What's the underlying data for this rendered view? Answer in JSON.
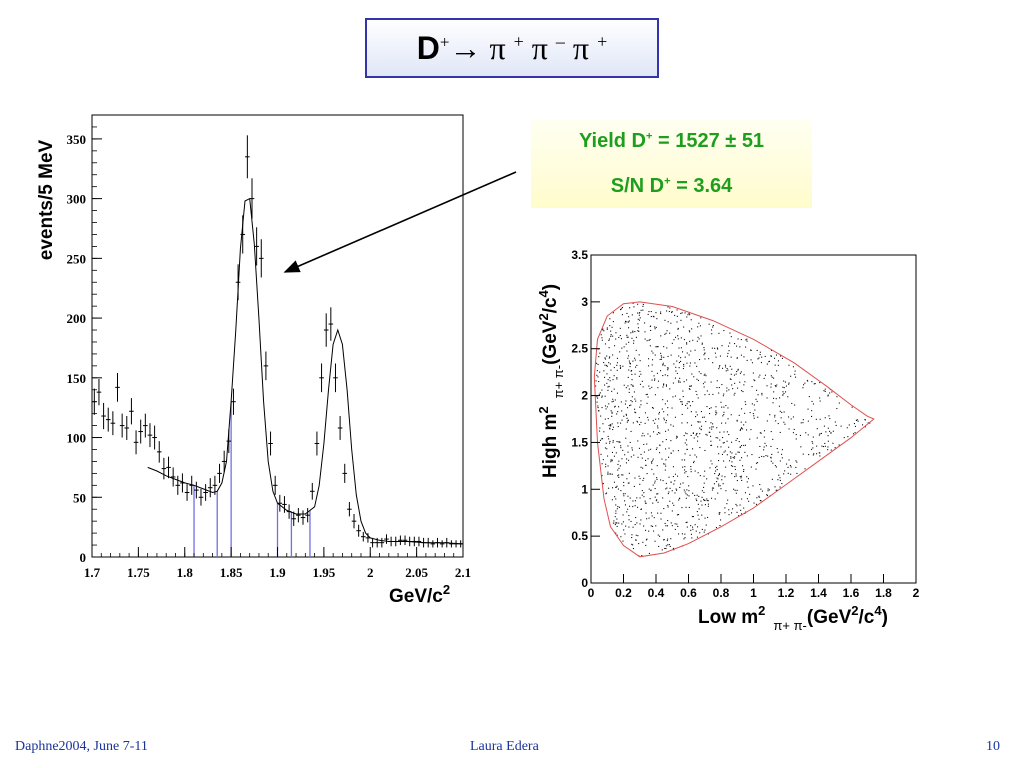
{
  "title": {
    "text": "D+→ π + π – π +",
    "parts": {
      "d": "D",
      "d_charge": "+",
      "arrow": "→",
      "pi": "π",
      "plus": "+",
      "minus": "–"
    }
  },
  "yield_box": {
    "yield_prefix": "Yield D",
    "charge": "+",
    "yield_value": " = 1527 ± 51",
    "sn_prefix": "S/N D",
    "sn_value": " = 3.64"
  },
  "footer": {
    "left": "Daphne2004, June 7-11",
    "center": "Laura Edera",
    "right": "10"
  },
  "colors": {
    "yield_text": "#1e9e1e",
    "title_border": "#3333aa",
    "footer_text": "#1a3399",
    "fit_window": "#6f6fe8",
    "dalitz_boundary": "#e05050"
  },
  "chart_data": [
    {
      "type": "scatter",
      "subtype": "histogram with error bars and fit",
      "xlabel": "GeV/c2",
      "ylabel": "events/5 MeV",
      "xlim": [
        1.7,
        2.1
      ],
      "ylim": [
        0,
        370
      ],
      "xticks": [
        "1.7",
        "1.75",
        "1.8",
        "1.85",
        "1.9",
        "1.95",
        "2",
        "2.05",
        "2.1"
      ],
      "yticks": [
        "0",
        "50",
        "100",
        "150",
        "200",
        "250",
        "300",
        "350"
      ],
      "grid": false,
      "x": [
        1.7025,
        1.7075,
        1.7125,
        1.7175,
        1.7225,
        1.7275,
        1.7325,
        1.7375,
        1.7425,
        1.7475,
        1.7525,
        1.7575,
        1.7625,
        1.7675,
        1.7725,
        1.7775,
        1.7825,
        1.7875,
        1.7925,
        1.7975,
        1.8025,
        1.8075,
        1.8125,
        1.8175,
        1.8225,
        1.8275,
        1.8325,
        1.8375,
        1.8425,
        1.8475,
        1.8525,
        1.8575,
        1.8625,
        1.8675,
        1.8725,
        1.8775,
        1.8825,
        1.8875,
        1.8925,
        1.8975,
        1.9025,
        1.9075,
        1.9125,
        1.9175,
        1.9225,
        1.9275,
        1.9325,
        1.9375,
        1.9425,
        1.9475,
        1.9525,
        1.9575,
        1.9625,
        1.9675,
        1.9725,
        1.9775,
        1.9825,
        1.9875,
        1.9925,
        1.9975,
        2.0025,
        2.0075,
        2.0125,
        2.0175,
        2.0225,
        2.0275,
        2.0325,
        2.0375,
        2.0425,
        2.0475,
        2.0525,
        2.0575,
        2.0625,
        2.0675,
        2.0725,
        2.0775,
        2.0825,
        2.0875,
        2.0925,
        2.0975
      ],
      "y": [
        130,
        138,
        118,
        115,
        112,
        142,
        110,
        108,
        122,
        96,
        105,
        110,
        102,
        100,
        88,
        74,
        75,
        67,
        60,
        62,
        54,
        60,
        56,
        50,
        54,
        58,
        60,
        70,
        80,
        97,
        130,
        230,
        270,
        335,
        300,
        260,
        250,
        160,
        95,
        60,
        45,
        44,
        38,
        32,
        35,
        33,
        35,
        55,
        95,
        150,
        190,
        195,
        150,
        108,
        70,
        40,
        30,
        22,
        17,
        16,
        12,
        12,
        12,
        15,
        13,
        13,
        14,
        14,
        13,
        13,
        13,
        12,
        12,
        11,
        12,
        11,
        12,
        11,
        11,
        11
      ],
      "errors": [
        11,
        11,
        11,
        10,
        10,
        12,
        10,
        10,
        11,
        10,
        10,
        10,
        10,
        10,
        9,
        9,
        9,
        8,
        8,
        8,
        7,
        8,
        7,
        7,
        7,
        8,
        8,
        8,
        9,
        10,
        11,
        15,
        16,
        18,
        17,
        16,
        16,
        12,
        10,
        8,
        7,
        7,
        6,
        6,
        6,
        6,
        6,
        7,
        10,
        12,
        14,
        14,
        12,
        10,
        8,
        6,
        6,
        5,
        4,
        4,
        4,
        4,
        4,
        4,
        4,
        4,
        4,
        4,
        4,
        4,
        4,
        4,
        4,
        3,
        4,
        3,
        4,
        3,
        3,
        3
      ],
      "fit_curve": {
        "name": "fit",
        "x": [
          1.76,
          1.77,
          1.78,
          1.79,
          1.8,
          1.81,
          1.82,
          1.83,
          1.835,
          1.84,
          1.845,
          1.85,
          1.855,
          1.86,
          1.865,
          1.87,
          1.875,
          1.88,
          1.885,
          1.89,
          1.895,
          1.9,
          1.91,
          1.92,
          1.93,
          1.94,
          1.945,
          1.95,
          1.955,
          1.96,
          1.965,
          1.97,
          1.975,
          1.98,
          1.985,
          1.99,
          1.995,
          2.0,
          2.01,
          2.02,
          2.03,
          2.04,
          2.06,
          2.08,
          2.1
        ],
        "y": [
          75,
          72,
          68,
          65,
          62,
          60,
          57,
          54,
          55,
          62,
          80,
          130,
          190,
          258,
          298,
          300,
          262,
          200,
          130,
          80,
          55,
          45,
          39,
          36,
          36,
          42,
          60,
          95,
          140,
          178,
          190,
          178,
          140,
          90,
          52,
          30,
          20,
          16,
          14,
          13,
          13,
          13,
          12,
          12,
          11
        ]
      },
      "fit_window_lines_x": [
        1.81,
        1.835,
        1.85,
        1.9,
        1.915,
        1.935
      ]
    },
    {
      "type": "scatter",
      "subtype": "Dalitz plot",
      "xlabel": "Low m2 π+ π-(GeV2/c4)",
      "ylabel": "High m2 π+ π-(GeV2/c4)",
      "xlim": [
        0,
        2
      ],
      "ylim": [
        0,
        3.5
      ],
      "xticks": [
        "0",
        "0.2",
        "0.4",
        "0.6",
        "0.8",
        "1",
        "1.2",
        "1.4",
        "1.6",
        "1.8",
        "2"
      ],
      "yticks": [
        "0",
        "0.5",
        "1",
        "1.5",
        "2",
        "2.5",
        "3",
        "3.5"
      ],
      "grid": false,
      "boundary": {
        "x": [
          0.08,
          0.04,
          0.02,
          0.04,
          0.1,
          0.2,
          0.3,
          0.5,
          0.75,
          1.0,
          1.25,
          1.45,
          1.6,
          1.7,
          1.74,
          1.6,
          1.4,
          1.2,
          1.0,
          0.8,
          0.6,
          0.45,
          0.3,
          0.2,
          0.12,
          0.08
        ],
        "y": [
          0.9,
          1.5,
          2.2,
          2.6,
          2.85,
          2.98,
          3.0,
          2.95,
          2.8,
          2.6,
          2.35,
          2.1,
          1.9,
          1.78,
          1.75,
          1.55,
          1.3,
          1.05,
          0.8,
          0.6,
          0.42,
          0.32,
          0.28,
          0.4,
          0.6,
          0.9
        ]
      },
      "point_count": 1500
    }
  ],
  "main_chart_labels": {
    "ylabel": "events/5 MeV",
    "xlabel_base": "GeV/c",
    "xlabel_sup": "2"
  },
  "dalitz_labels": {
    "x_base": "Low m",
    "x_sup": "2",
    "x_sub": "π+ π-",
    "x_unit_open": "(GeV",
    "x_unit_sup": "2",
    "x_unit_mid": "/c",
    "x_unit_sup2": "4",
    "x_unit_close": ")",
    "y_base": "High m",
    "y_sup": "2",
    "y_sub": "π+ π-",
    "y_unit_open": "(GeV",
    "y_unit_sup": "2",
    "y_unit_mid": "/c",
    "y_unit_sup2": "4",
    "y_unit_close": ")"
  }
}
